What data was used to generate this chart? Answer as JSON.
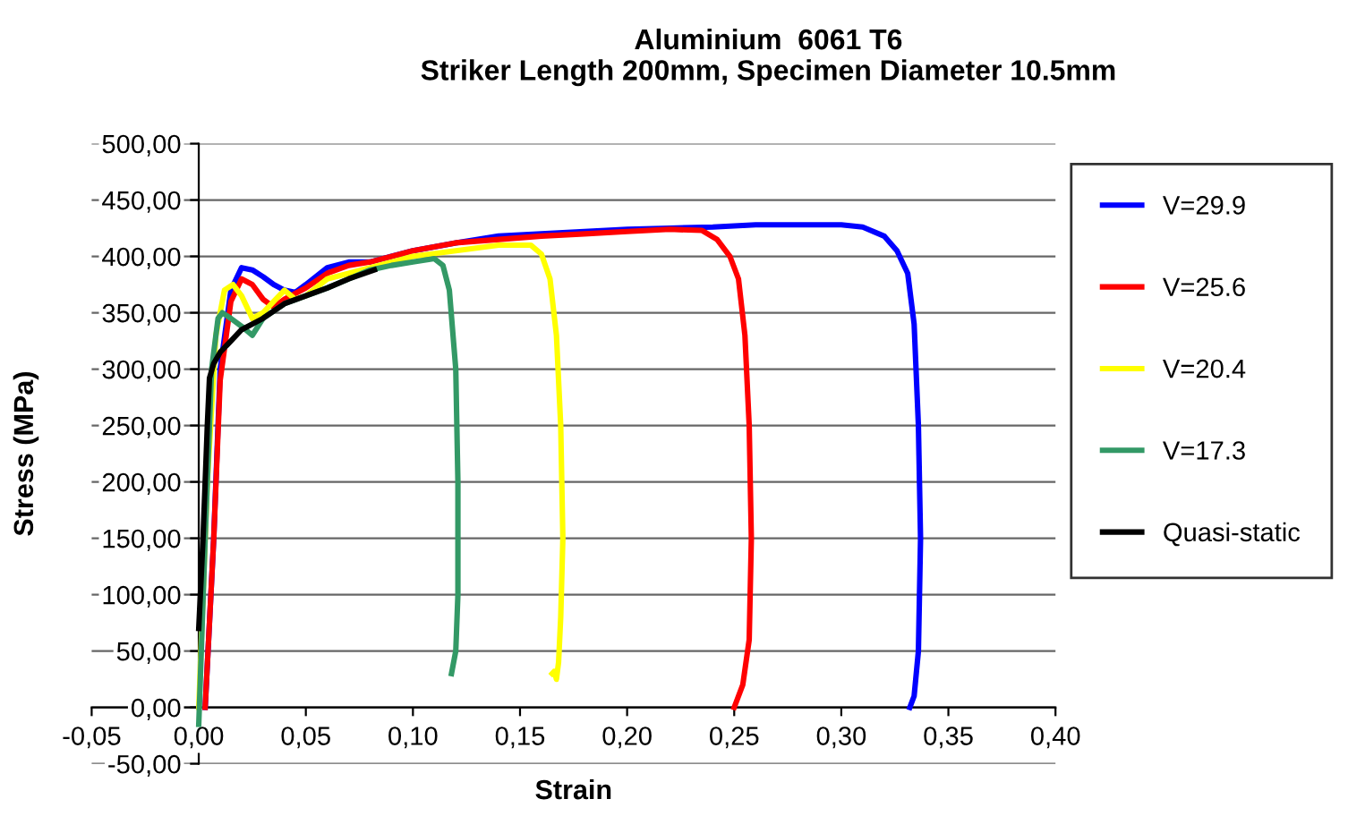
{
  "chart_data": {
    "type": "line",
    "title": "Aluminium  6061 T6\nStriker Length 200mm, Specimen Diameter 10.5mm",
    "xlabel": "Strain",
    "ylabel": "Stress (MPa)",
    "xlim": [
      -0.05,
      0.4
    ],
    "ylim": [
      -50,
      500
    ],
    "xticks": [
      {
        "value": -0.05,
        "label": "-0,05"
      },
      {
        "value": 0,
        "label": "0,00"
      },
      {
        "value": 0.05,
        "label": "0,05"
      },
      {
        "value": 0.1,
        "label": "0,10"
      },
      {
        "value": 0.15,
        "label": "0,15"
      },
      {
        "value": 0.2,
        "label": "0,20"
      },
      {
        "value": 0.25,
        "label": "0,25"
      },
      {
        "value": 0.3,
        "label": "0,30"
      },
      {
        "value": 0.35,
        "label": "0,35"
      },
      {
        "value": 0.4,
        "label": "0,40"
      }
    ],
    "yticks": [
      {
        "value": -50,
        "label": "-50,00"
      },
      {
        "value": 0,
        "label": "0,00"
      },
      {
        "value": 50,
        "label": "50,00"
      },
      {
        "value": 100,
        "label": "100,00"
      },
      {
        "value": 150,
        "label": "150,00"
      },
      {
        "value": 200,
        "label": "200,00"
      },
      {
        "value": 250,
        "label": "250,00"
      },
      {
        "value": 300,
        "label": "300,00"
      },
      {
        "value": 350,
        "label": "350,00"
      },
      {
        "value": 400,
        "label": "400,00"
      },
      {
        "value": 450,
        "label": "450,00"
      },
      {
        "value": 500,
        "label": "500,00"
      }
    ],
    "grid": "y",
    "legend": "right",
    "marker": "none",
    "line_style": "solid",
    "series": [
      {
        "name": "V=29.9",
        "color": "#0000ff",
        "x": [
          0.003,
          0.007,
          0.01,
          0.015,
          0.02,
          0.025,
          0.03,
          0.035,
          0.04,
          0.045,
          0.05,
          0.06,
          0.07,
          0.08,
          0.09,
          0.1,
          0.12,
          0.14,
          0.16,
          0.18,
          0.2,
          0.22,
          0.24,
          0.26,
          0.28,
          0.3,
          0.31,
          0.32,
          0.326,
          0.331,
          0.334,
          0.336,
          0.337,
          0.336,
          0.334,
          0.332
        ],
        "values": [
          0,
          150,
          300,
          370,
          390,
          388,
          382,
          375,
          370,
          368,
          375,
          390,
          395,
          395,
          400,
          405,
          412,
          418,
          420,
          422,
          424,
          425,
          426,
          428,
          428,
          428,
          426,
          418,
          405,
          385,
          340,
          250,
          150,
          50,
          10,
          0
        ]
      },
      {
        "name": "V=25.6",
        "color": "#ff0000",
        "x": [
          0.003,
          0.007,
          0.01,
          0.015,
          0.02,
          0.025,
          0.03,
          0.035,
          0.04,
          0.05,
          0.06,
          0.07,
          0.08,
          0.1,
          0.12,
          0.14,
          0.16,
          0.18,
          0.2,
          0.22,
          0.235,
          0.242,
          0.248,
          0.252,
          0.255,
          0.257,
          0.258,
          0.257,
          0.254,
          0.25
        ],
        "values": [
          0,
          150,
          290,
          360,
          380,
          375,
          362,
          355,
          362,
          372,
          385,
          392,
          395,
          405,
          412,
          415,
          418,
          420,
          422,
          424,
          423,
          415,
          400,
          380,
          330,
          250,
          150,
          60,
          20,
          0
        ]
      },
      {
        "name": "V=20.4",
        "color": "#ffff00",
        "x": [
          0.0,
          0.004,
          0.008,
          0.012,
          0.016,
          0.02,
          0.025,
          0.03,
          0.035,
          0.04,
          0.045,
          0.05,
          0.06,
          0.07,
          0.08,
          0.09,
          0.1,
          0.12,
          0.14,
          0.155,
          0.16,
          0.164,
          0.167,
          0.169,
          0.17,
          0.169,
          0.168,
          0.167,
          0.166,
          0.165
        ],
        "values": [
          0,
          200,
          330,
          370,
          375,
          365,
          345,
          350,
          360,
          370,
          362,
          365,
          380,
          385,
          390,
          395,
          400,
          405,
          410,
          410,
          402,
          380,
          330,
          250,
          150,
          80,
          40,
          25,
          32,
          30
        ]
      },
      {
        "name": "V=17.3",
        "color": "#339966",
        "x": [
          0.0,
          0.003,
          0.006,
          0.009,
          0.011,
          0.015,
          0.02,
          0.025,
          0.03,
          0.04,
          0.05,
          0.06,
          0.07,
          0.08,
          0.09,
          0.1,
          0.11,
          0.114,
          0.117,
          0.12,
          0.121,
          0.121,
          0.12,
          0.118
        ],
        "values": [
          -15,
          150,
          300,
          345,
          350,
          345,
          338,
          330,
          345,
          358,
          365,
          372,
          380,
          388,
          392,
          395,
          398,
          392,
          370,
          300,
          200,
          100,
          50,
          30
        ]
      },
      {
        "name": "Quasi-static",
        "color": "#000000",
        "x": [
          0.0,
          0.002,
          0.004,
          0.005,
          0.007,
          0.01,
          0.015,
          0.02,
          0.03,
          0.04,
          0.05,
          0.06,
          0.07,
          0.082
        ],
        "values": [
          70,
          150,
          250,
          292,
          305,
          315,
          325,
          335,
          345,
          358,
          365,
          372,
          380,
          388
        ]
      }
    ]
  }
}
